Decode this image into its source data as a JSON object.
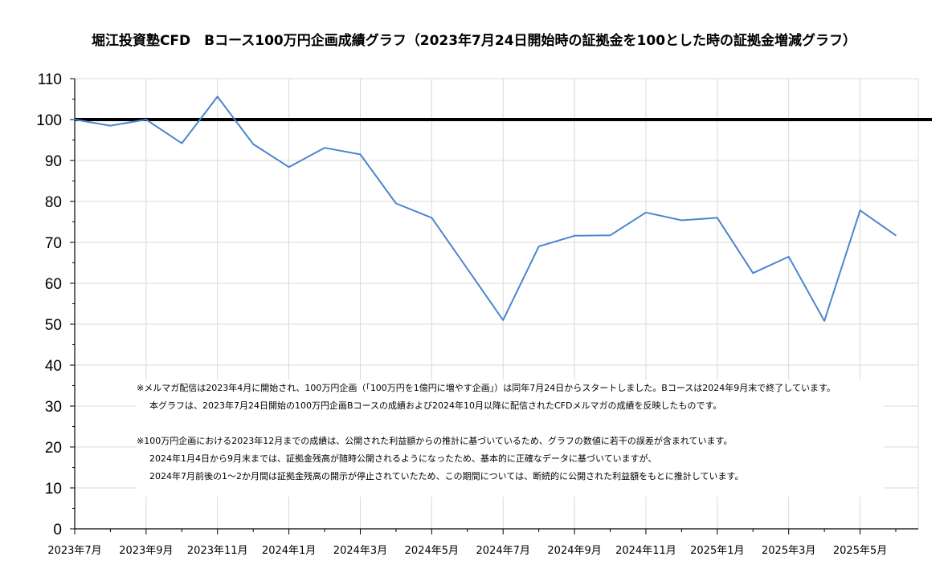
{
  "chart_data": {
    "type": "line",
    "title": "堀江投資塾CFD　Bコース100万円企画成績グラフ（2023年7月24日開始時の証拠金を100とした時の証拠金増減グラフ）",
    "xlabel": "",
    "ylabel": "",
    "ylim": [
      0,
      110
    ],
    "yticks": [
      "0",
      "10",
      "20",
      "30",
      "40",
      "50",
      "60",
      "70",
      "80",
      "90",
      "100",
      "110"
    ],
    "x_tick_labels": [
      "2023年7月",
      "2023年9月",
      "2023年11月",
      "2024年1月",
      "2024年3月",
      "2024年5月",
      "2024年7月",
      "2024年9月",
      "2024年11月",
      "2025年1月",
      "2025年3月",
      "2025年5月"
    ],
    "x": [
      "2023年7月",
      "2023年8月",
      "2023年9月",
      "2023年10月",
      "2023年11月",
      "2023年12月",
      "2024年1月",
      "2024年2月",
      "2024年3月",
      "2024年4月",
      "2024年5月",
      "2024年6月",
      "2024年7月",
      "2024年8月",
      "2024年9月",
      "2024年10月",
      "2024年11月",
      "2024年12月",
      "2025年1月",
      "2025年2月",
      "2025年3月",
      "2025年4月",
      "2025年5月",
      "2025年6月"
    ],
    "series": [
      {
        "values": [
          100,
          98.5,
          100,
          94.2,
          105.6,
          94,
          88.4,
          93.1,
          91.5,
          79.5,
          76,
          63.5,
          51,
          69,
          71.6,
          71.7,
          77.3,
          75.4,
          76,
          62.5,
          66.5,
          50.8,
          77.8,
          71.7
        ],
        "color": "#4a86cf"
      }
    ],
    "reference_line": {
      "value": 100,
      "color": "#000000"
    },
    "grid": true
  },
  "notes": {
    "line1": "※メルマガ配信は2023年4月に開始され、100万円企画（「100万円を1億円に増やす企画」）は同年7月24日からスタートしました。Bコースは2024年9月末で終了しています。",
    "line2": "本グラフは、2023年7月24日開始の100万円企画Bコースの成績および2024年10月以降に配信されたCFDメルマガの成績を反映したものです。",
    "line3": "※100万円企画における2023年12月までの成績は、公開された利益額からの推計に基づいているため、グラフの数値に若干の誤差が含まれています。",
    "line4": "2024年1月4日から9月末までは、証拠金残高が随時公開されるようになったため、基本的に正確なデータに基づいていますが、",
    "line5": "2024年7月前後の1～2か月間は証拠金残高の開示が停止されていたため、この期間については、断続的に公開された利益額をもとに推計しています。"
  }
}
